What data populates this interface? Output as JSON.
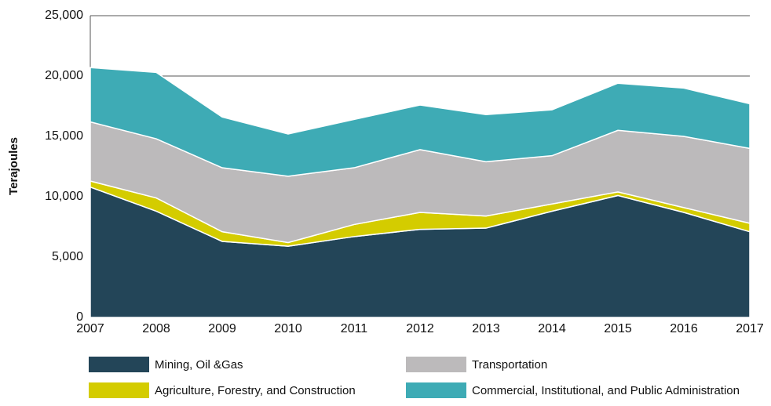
{
  "chart_data": {
    "type": "stacked-area",
    "y_label": "Terajoules",
    "x": [
      2007,
      2008,
      2009,
      2010,
      2011,
      2012,
      2013,
      2014,
      2015,
      2016,
      2017
    ],
    "xlim": [
      2007,
      2017
    ],
    "ylim": [
      0,
      25000
    ],
    "yticks": [
      0,
      {
        "value": 5000,
        "label": "5,000"
      },
      {
        "value": 10000,
        "label": "10,000"
      },
      {
        "value": 15000,
        "label": "15,000"
      },
      {
        "value": 20000,
        "label": "20,000"
      },
      {
        "value": 25000,
        "label": "25,000"
      }
    ],
    "grid": true,
    "series": [
      {
        "name": "Mining, Oil &Gas",
        "color": "#234558",
        "values": [
          10800,
          8800,
          6300,
          5900,
          6700,
          7300,
          7400,
          8800,
          10100,
          8700,
          7100
        ]
      },
      {
        "name": "Agriculture, Forestry, and Construction",
        "color": "#d4cc00",
        "values": [
          500,
          1100,
          800,
          300,
          1000,
          1400,
          1000,
          600,
          300,
          400,
          700
        ]
      },
      {
        "name": "Transportation",
        "color": "#bcbabb",
        "values": [
          4900,
          4900,
          5300,
          5500,
          4700,
          5200,
          4500,
          4000,
          5100,
          5900,
          6200
        ]
      },
      {
        "name": "Commercial, Institutional, and Public Administration",
        "color": "#3eabb5",
        "values": [
          4500,
          5500,
          4200,
          3500,
          4000,
          3700,
          3900,
          3800,
          3900,
          4000,
          3700
        ]
      }
    ]
  }
}
